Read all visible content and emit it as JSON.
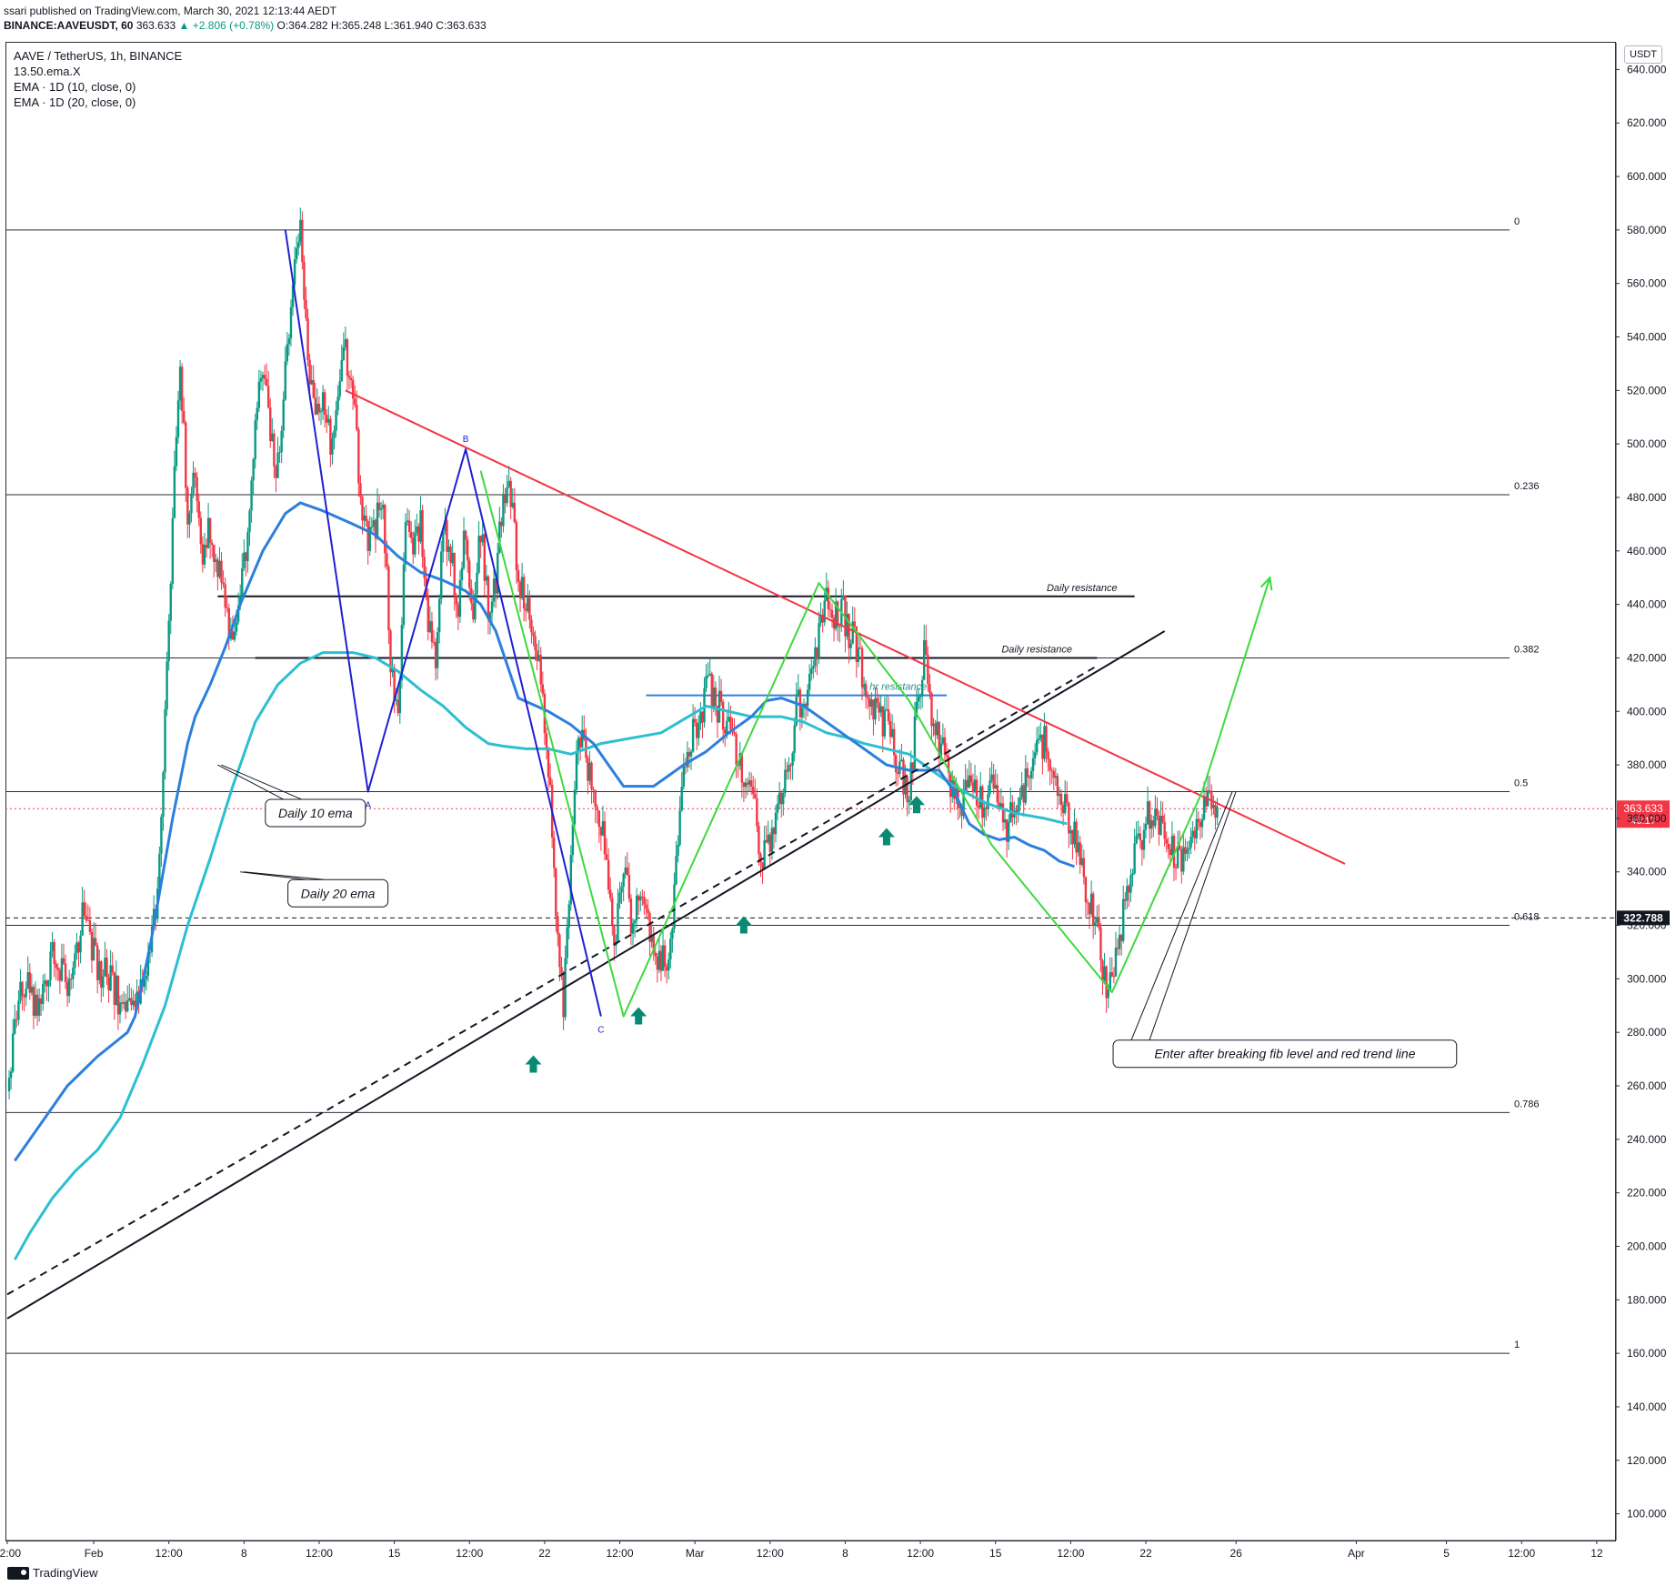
{
  "publisher_line": "ssari published on TradingView.com, March 30, 2021 12:13:44 AEDT",
  "quote_line": {
    "symbol": "BINANCE:AAVEUSDT, 60",
    "last": "363.633",
    "change": "▲ +2.806 (+0.78%)",
    "ohlc": "O:364.282 H:365.248 L:361.940 C:363.633"
  },
  "legend": {
    "title": "AAVE / TetherUS, 1h, BINANCE",
    "indicators": [
      "13.50.ema.X",
      "EMA · 1D (10, close, 0)",
      "EMA · 1D (20, close, 0)"
    ]
  },
  "currency": "USDT",
  "brand": "TradingView",
  "colors": {
    "up": "#089981",
    "down": "#f23645",
    "ema10": "#2d7fdc",
    "ema20": "#2dbfd0",
    "trend_red": "#f23645",
    "pattern_blue": "#1f1fd4",
    "pattern_green": "#3dd93d",
    "fib": "#2a2e39",
    "arrow": "#088a73"
  },
  "chart_data": {
    "type": "candlestick",
    "symbol": "AAVE/USDT",
    "timeframe": "1h",
    "ylim": [
      90,
      650
    ],
    "y_ticks": [
      "100.000",
      "120.000",
      "140.000",
      "160.000",
      "180.000",
      "200.000",
      "220.000",
      "240.000",
      "260.000",
      "280.000",
      "300.000",
      "320.000",
      "340.000",
      "360.000",
      "380.000",
      "400.000",
      "420.000",
      "440.000",
      "460.000",
      "480.000",
      "500.000",
      "520.000",
      "540.000",
      "560.000",
      "580.000",
      "600.000",
      "620.000",
      "640.000"
    ],
    "x_ticks": [
      "12:00",
      "Feb",
      "12:00",
      "8",
      "12:00",
      "15",
      "12:00",
      "22",
      "12:00",
      "Mar",
      "12:00",
      "8",
      "12:00",
      "15",
      "12:00",
      "22",
      "26",
      "Apr",
      "5",
      "12:00",
      "12"
    ],
    "x_tick_index": [
      0,
      11.5,
      21.5,
      31.5,
      41.5,
      51.5,
      61.5,
      71.5,
      81.5,
      91.5,
      101.5,
      111.5,
      121.5,
      131.5,
      141.5,
      151.5,
      163.5,
      179.5,
      191.5,
      201.5,
      211.5
    ],
    "x_total": 212,
    "price_path": [
      [
        0,
        258
      ],
      [
        2,
        300
      ],
      [
        4,
        288
      ],
      [
        6,
        312
      ],
      [
        8,
        296
      ],
      [
        10,
        322
      ],
      [
        12,
        304
      ],
      [
        14,
        298
      ],
      [
        16,
        286
      ],
      [
        18,
        295
      ],
      [
        20,
        330
      ],
      [
        21,
        400
      ],
      [
        22,
        470
      ],
      [
        23,
        530
      ],
      [
        24,
        475
      ],
      [
        25,
        490
      ],
      [
        26,
        455
      ],
      [
        27,
        470
      ],
      [
        29,
        440
      ],
      [
        30,
        420
      ],
      [
        31,
        440
      ],
      [
        32,
        470
      ],
      [
        33,
        510
      ],
      [
        34,
        530
      ],
      [
        35,
        500
      ],
      [
        36,
        490
      ],
      [
        37,
        525
      ],
      [
        38,
        560
      ],
      [
        39,
        580
      ],
      [
        40,
        530
      ],
      [
        41,
        505
      ],
      [
        42,
        520
      ],
      [
        43,
        500
      ],
      [
        44,
        515
      ],
      [
        45,
        535
      ],
      [
        46,
        520
      ],
      [
        47,
        480
      ],
      [
        48,
        465
      ],
      [
        49,
        470
      ],
      [
        50,
        480
      ],
      [
        51,
        420
      ],
      [
        52,
        395
      ],
      [
        53,
        470
      ],
      [
        54,
        460
      ],
      [
        55,
        470
      ],
      [
        56,
        430
      ],
      [
        57,
        420
      ],
      [
        58,
        470
      ],
      [
        59,
        460
      ],
      [
        60,
        440
      ],
      [
        61,
        470
      ],
      [
        62,
        430
      ],
      [
        63,
        470
      ],
      [
        64,
        440
      ],
      [
        65,
        450
      ],
      [
        66,
        480
      ],
      [
        67,
        480
      ],
      [
        68,
        450
      ],
      [
        69,
        440
      ],
      [
        70,
        430
      ],
      [
        71,
        410
      ],
      [
        72,
        380
      ],
      [
        73,
        330
      ],
      [
        74,
        290
      ],
      [
        75,
        345
      ],
      [
        76,
        395
      ],
      [
        77,
        380
      ],
      [
        78,
        375
      ],
      [
        79,
        360
      ],
      [
        80,
        330
      ],
      [
        81,
        315
      ],
      [
        82,
        345
      ],
      [
        83,
        320
      ],
      [
        84,
        335
      ],
      [
        85,
        328
      ],
      [
        86,
        310
      ],
      [
        87,
        305
      ],
      [
        88,
        308
      ],
      [
        89,
        340
      ],
      [
        90,
        375
      ],
      [
        91,
        390
      ],
      [
        92,
        395
      ],
      [
        93,
        410
      ],
      [
        94,
        405
      ],
      [
        95,
        400
      ],
      [
        96,
        392
      ],
      [
        97,
        385
      ],
      [
        98,
        378
      ],
      [
        99,
        372
      ],
      [
        100,
        350
      ],
      [
        101,
        345
      ],
      [
        102,
        360
      ],
      [
        103,
        370
      ],
      [
        104,
        380
      ],
      [
        105,
        400
      ],
      [
        106,
        405
      ],
      [
        107,
        415
      ],
      [
        108,
        430
      ],
      [
        109,
        440
      ],
      [
        110,
        435
      ],
      [
        111,
        440
      ],
      [
        112,
        430
      ],
      [
        113,
        425
      ],
      [
        114,
        410
      ],
      [
        115,
        405
      ],
      [
        116,
        400
      ],
      [
        117,
        395
      ],
      [
        118,
        385
      ],
      [
        119,
        375
      ],
      [
        120,
        370
      ],
      [
        121,
        400
      ],
      [
        122,
        420
      ],
      [
        123,
        400
      ],
      [
        124,
        390
      ],
      [
        125,
        380
      ],
      [
        126,
        370
      ],
      [
        127,
        365
      ],
      [
        128,
        370
      ],
      [
        129,
        368
      ],
      [
        130,
        365
      ],
      [
        131,
        372
      ],
      [
        132,
        360
      ],
      [
        133,
        358
      ],
      [
        134,
        362
      ],
      [
        135,
        368
      ],
      [
        136,
        380
      ],
      [
        137,
        385
      ],
      [
        138,
        390
      ],
      [
        139,
        382
      ],
      [
        140,
        370
      ],
      [
        141,
        362
      ],
      [
        142,
        355
      ],
      [
        143,
        340
      ],
      [
        144,
        330
      ],
      [
        145,
        320
      ],
      [
        146,
        300
      ],
      [
        147,
        295
      ],
      [
        148,
        315
      ],
      [
        149,
        335
      ],
      [
        150,
        345
      ],
      [
        151,
        355
      ],
      [
        152,
        362
      ],
      [
        153,
        358
      ],
      [
        154,
        352
      ],
      [
        155,
        348
      ],
      [
        156,
        342
      ],
      [
        157,
        348
      ],
      [
        158,
        356
      ],
      [
        159,
        362
      ],
      [
        160,
        364
      ],
      [
        161,
        363.633
      ]
    ],
    "ema_10d": [
      [
        1,
        232
      ],
      [
        4,
        244
      ],
      [
        8,
        260
      ],
      [
        12,
        271
      ],
      [
        16,
        280
      ],
      [
        17,
        286
      ],
      [
        19,
        312
      ],
      [
        22,
        360
      ],
      [
        24,
        388
      ],
      [
        25,
        398
      ],
      [
        27,
        410
      ],
      [
        29,
        424
      ],
      [
        31,
        440
      ],
      [
        34,
        460
      ],
      [
        37,
        474
      ],
      [
        39,
        478
      ],
      [
        42,
        475
      ],
      [
        46,
        470
      ],
      [
        49,
        466
      ],
      [
        52,
        458
      ],
      [
        55,
        452
      ],
      [
        58,
        449
      ],
      [
        61,
        445
      ],
      [
        63,
        440
      ],
      [
        65,
        430
      ],
      [
        68,
        405
      ],
      [
        72,
        400
      ],
      [
        75,
        395
      ],
      [
        78,
        388
      ],
      [
        80,
        380
      ],
      [
        82,
        372
      ],
      [
        86,
        372
      ],
      [
        90,
        380
      ],
      [
        93,
        385
      ],
      [
        96,
        392
      ],
      [
        99,
        398
      ],
      [
        101,
        404
      ],
      [
        103,
        405
      ],
      [
        106,
        402
      ],
      [
        109,
        396
      ],
      [
        112,
        390
      ],
      [
        114,
        386
      ],
      [
        117,
        380
      ],
      [
        120,
        378
      ],
      [
        124,
        378
      ],
      [
        126,
        370
      ],
      [
        128,
        358
      ],
      [
        130,
        354
      ],
      [
        132,
        352
      ],
      [
        134,
        353
      ],
      [
        136,
        350
      ],
      [
        138,
        348
      ],
      [
        140,
        344
      ],
      [
        142,
        342
      ]
    ],
    "ema_20d": [
      [
        1,
        195
      ],
      [
        3,
        205
      ],
      [
        6,
        218
      ],
      [
        9,
        228
      ],
      [
        12,
        236
      ],
      [
        15,
        248
      ],
      [
        18,
        268
      ],
      [
        21,
        290
      ],
      [
        24,
        320
      ],
      [
        27,
        345
      ],
      [
        30,
        372
      ],
      [
        33,
        396
      ],
      [
        36,
        410
      ],
      [
        39,
        418
      ],
      [
        42,
        422
      ],
      [
        46,
        422
      ],
      [
        49,
        420
      ],
      [
        52,
        415
      ],
      [
        55,
        408
      ],
      [
        58,
        402
      ],
      [
        61,
        394
      ],
      [
        64,
        388
      ],
      [
        66,
        387
      ],
      [
        69,
        386
      ],
      [
        72,
        386
      ],
      [
        75,
        384
      ],
      [
        79,
        388
      ],
      [
        83,
        390
      ],
      [
        87,
        392
      ],
      [
        90,
        397
      ],
      [
        93,
        402
      ],
      [
        96,
        400
      ],
      [
        99,
        398
      ],
      [
        101,
        398
      ],
      [
        103,
        398
      ],
      [
        106,
        396
      ],
      [
        109,
        392
      ],
      [
        112,
        390
      ],
      [
        114,
        388
      ],
      [
        117,
        386
      ],
      [
        120,
        384
      ],
      [
        123,
        378
      ],
      [
        126,
        372
      ],
      [
        130,
        366
      ],
      [
        134,
        362
      ],
      [
        138,
        360
      ],
      [
        141,
        358
      ]
    ],
    "fib_levels": [
      {
        "label": "0",
        "price": 580
      },
      {
        "label": "0.236",
        "price": 481
      },
      {
        "label": "0.382",
        "price": 420
      },
      {
        "label": "0.5",
        "price": 370
      },
      {
        "label": "0.618",
        "price": 320
      },
      {
        "label": "0.786",
        "price": 250
      },
      {
        "label": "1",
        "price": 160
      }
    ],
    "last_price": {
      "value": "363.633",
      "countdown": "46:17"
    },
    "marked_level": {
      "value": "322.788",
      "price": 322.788
    },
    "trend_lines": [
      {
        "name": "red-resistance",
        "from": [
          45,
          520
        ],
        "to": [
          178,
          343
        ]
      },
      {
        "name": "black-support",
        "from": [
          0,
          173
        ],
        "to": [
          154,
          430
        ]
      },
      {
        "name": "black-dashed-support",
        "from": [
          0,
          182
        ],
        "to": [
          145,
          417
        ]
      }
    ],
    "horizontal_levels": [
      {
        "label": "Daily resistance",
        "price": 443,
        "x": [
          28,
          150
        ],
        "label_x": 143
      },
      {
        "label": "Daily resistance",
        "price": 420,
        "x": [
          33,
          145
        ],
        "label_x": 137
      },
      {
        "label": "4 hr resistance",
        "price": 406,
        "x": [
          85,
          125
        ],
        "label_x": 118
      }
    ],
    "abc_pattern": {
      "points": [
        [
          37,
          580
        ],
        [
          48,
          370
        ],
        [
          61,
          498
        ],
        [
          79,
          286
        ]
      ],
      "labels": [
        "",
        "A",
        "B",
        "C"
      ]
    },
    "zigzag": [
      [
        63,
        490
      ],
      [
        82,
        286
      ],
      [
        108,
        448
      ],
      [
        120,
        404
      ],
      [
        131,
        350
      ],
      [
        147,
        295
      ],
      [
        159,
        370
      ],
      [
        168,
        450
      ]
    ],
    "signal_arrows": [
      [
        70,
        268
      ],
      [
        84,
        286
      ],
      [
        98,
        320
      ],
      [
        117,
        353
      ],
      [
        121,
        365
      ]
    ],
    "annotations": [
      {
        "text": "Daily 10 ema",
        "at": [
          41,
          362
        ],
        "anchor": [
          28,
          380
        ]
      },
      {
        "text": "Daily 20 ema",
        "at": [
          44,
          332
        ],
        "anchor": [
          31,
          340
        ]
      },
      {
        "text": "Enter after breaking fib level and red trend line",
        "at": [
          170,
          272
        ],
        "anchor": [
          163,
          370
        ]
      }
    ]
  }
}
